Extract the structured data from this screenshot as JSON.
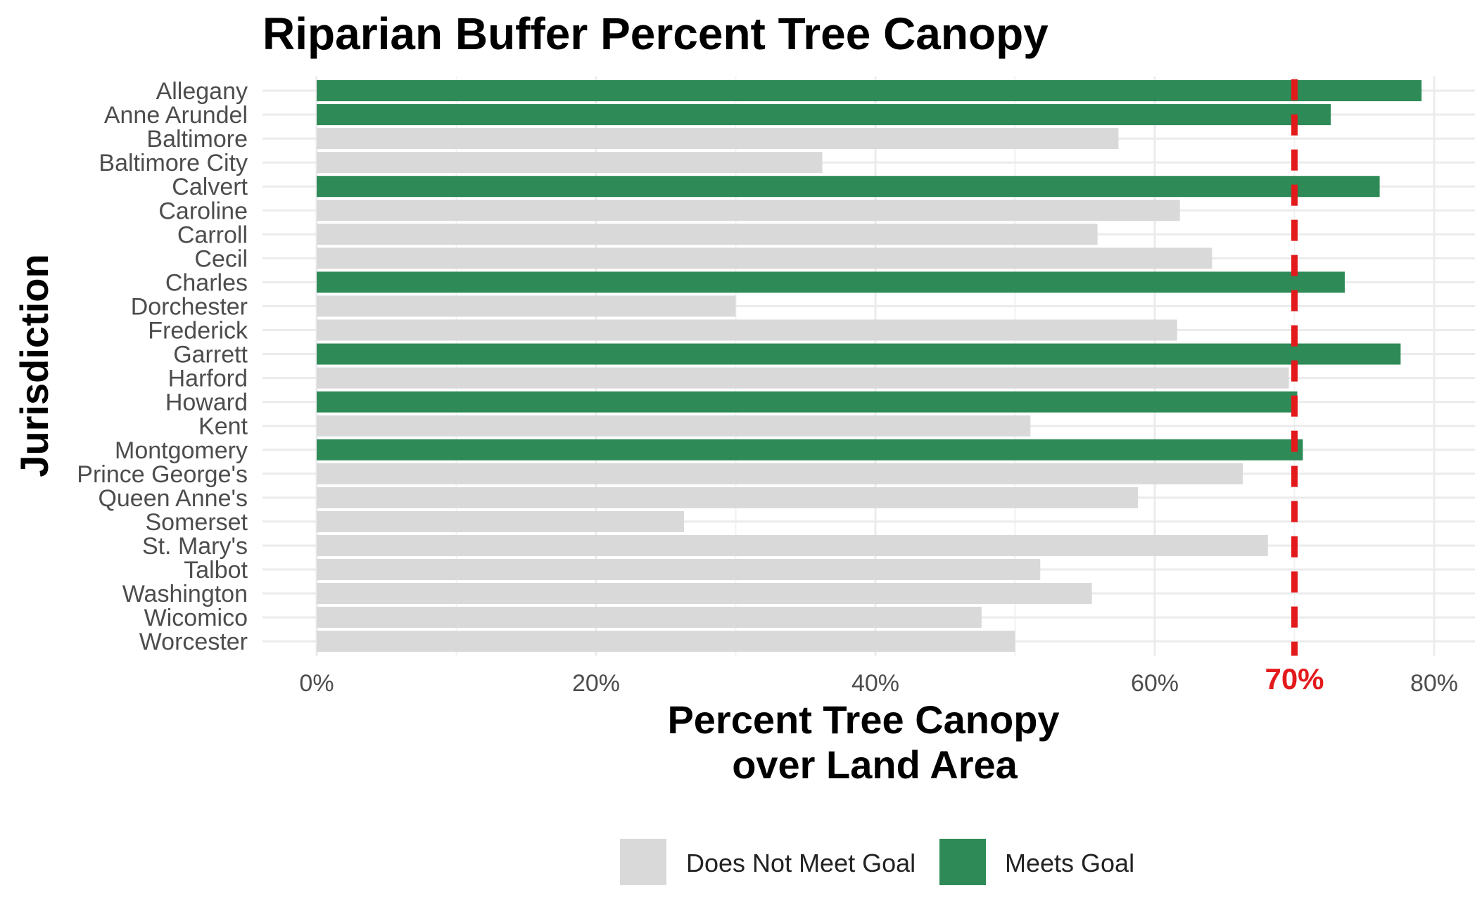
{
  "chart_data": {
    "type": "bar",
    "orientation": "horizontal",
    "title": "Riparian Buffer Percent Tree Canopy",
    "xlabel": [
      "Percent Tree Canopy",
      "over Land Area"
    ],
    "ylabel": "Jurisdiction",
    "xlim": [
      0,
      82
    ],
    "x_ticks": [
      0,
      20,
      40,
      60,
      80
    ],
    "x_tick_labels": [
      "0%",
      "20%",
      "40%",
      "60%",
      "80%"
    ],
    "grid": true,
    "legend_position": "bottom",
    "reference_line": {
      "value": 70,
      "label": "70%",
      "color": "#e31a1c",
      "style": "dashed"
    },
    "categories": [
      "Allegany",
      "Anne Arundel",
      "Baltimore",
      "Baltimore City",
      "Calvert",
      "Caroline",
      "Carroll",
      "Cecil",
      "Charles",
      "Dorchester",
      "Frederick",
      "Garrett",
      "Harford",
      "Howard",
      "Kent",
      "Montgomery",
      "Prince George's",
      "Queen Anne's",
      "Somerset",
      "St. Mary's",
      "Talbot",
      "Washington",
      "Wicomico",
      "Worcester"
    ],
    "values": [
      79.1,
      72.6,
      57.4,
      36.2,
      76.1,
      61.8,
      55.9,
      64.1,
      73.6,
      30.0,
      61.6,
      77.6,
      69.6,
      70.2,
      51.1,
      70.6,
      66.3,
      58.8,
      26.3,
      68.1,
      51.8,
      55.5,
      47.6,
      50.0
    ],
    "groups": [
      "Meets Goal",
      "Meets Goal",
      "Does Not Meet Goal",
      "Does Not Meet Goal",
      "Meets Goal",
      "Does Not Meet Goal",
      "Does Not Meet Goal",
      "Does Not Meet Goal",
      "Meets Goal",
      "Does Not Meet Goal",
      "Does Not Meet Goal",
      "Meets Goal",
      "Does Not Meet Goal",
      "Meets Goal",
      "Does Not Meet Goal",
      "Meets Goal",
      "Does Not Meet Goal",
      "Does Not Meet Goal",
      "Does Not Meet Goal",
      "Does Not Meet Goal",
      "Does Not Meet Goal",
      "Does Not Meet Goal",
      "Does Not Meet Goal",
      "Does Not Meet Goal"
    ],
    "legend": [
      {
        "name": "Does Not Meet Goal",
        "color": "#d9d9d9"
      },
      {
        "name": "Meets Goal",
        "color": "#2e8b57"
      }
    ]
  }
}
